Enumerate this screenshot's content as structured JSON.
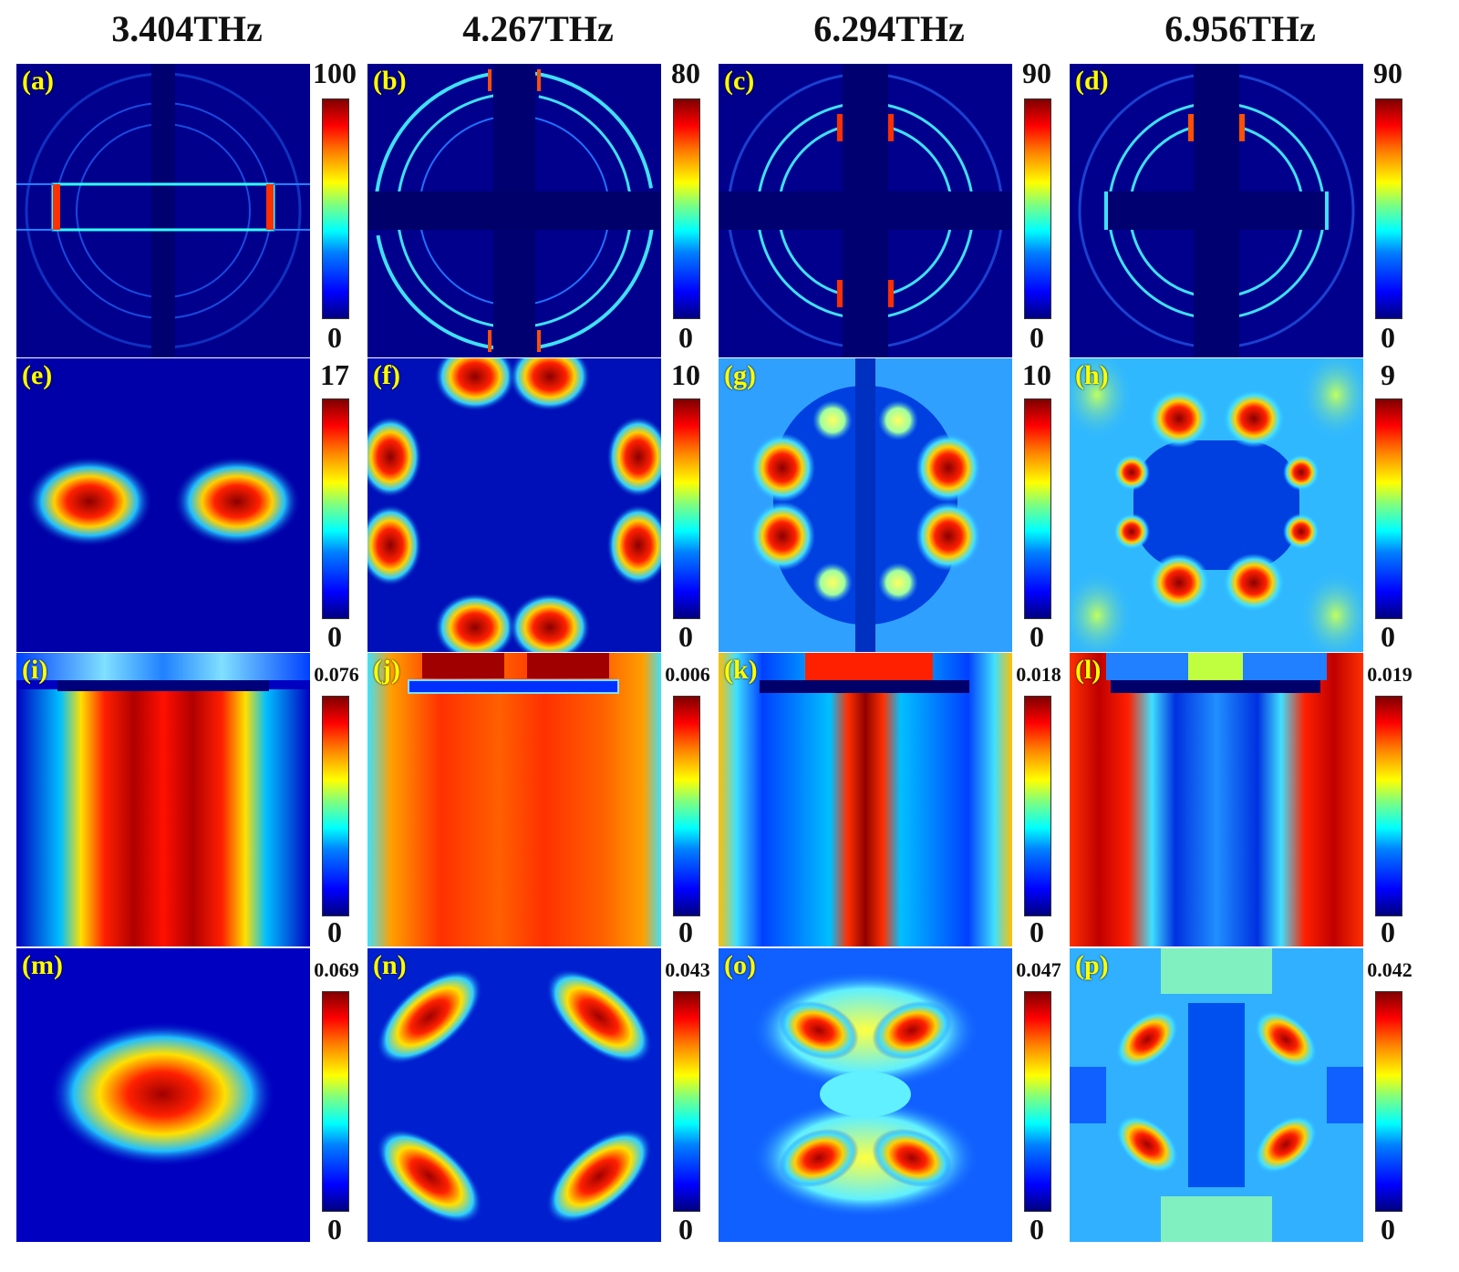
{
  "columns": [
    "3.404THz",
    "4.267THz",
    "6.294THz",
    "6.956THz"
  ],
  "labels": [
    "(a)",
    "(b)",
    "(c)",
    "(d)",
    "(e)",
    "(f)",
    "(g)",
    "(h)",
    "(i)",
    "(j)",
    "(k)",
    "(l)",
    "(m)",
    "(n)",
    "(o)",
    "(p)"
  ],
  "colorbar_max": [
    "100",
    "80",
    "90",
    "90",
    "17",
    "10",
    "10",
    "9",
    "0.076",
    "0.006",
    "0.018",
    "0.019",
    "0.069",
    "0.043",
    "0.047",
    "0.042"
  ],
  "colorbar_min": [
    "0",
    "0",
    "0",
    "0",
    "0",
    "0",
    "0",
    "0",
    "0",
    "0",
    "0",
    "0",
    "0",
    "0",
    "0",
    "0"
  ]
}
